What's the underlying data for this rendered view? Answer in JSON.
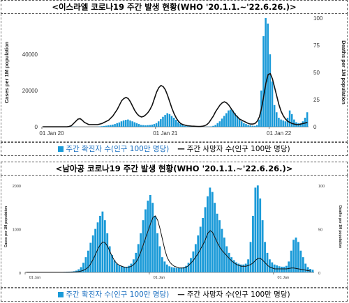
{
  "charts": [
    {
      "title": "<이스라엘 코로나19 주간 발생 현황(WHO '20.1.1.~'22.6.26.)>",
      "legend": {
        "bar_label": "주간 확진자 수(인구 100만 명당)",
        "line_label": "주간 사망자 수(인구 100만 명당)"
      }
    },
    {
      "title": "<남아공 코로나19 주간 발생 현황(WHO '20.1.1.~'22.6.26.)>",
      "legend": {
        "bar_label": "주간 확진자 수(인구 100만 명당)",
        "line_label": "주간 사망자 수(인구 100만 명당)"
      }
    }
  ],
  "colors": {
    "bar": "#1a9ad8",
    "line": "#111111"
  },
  "chart_data": [
    {
      "type": "bar",
      "title": "<이스라엘 코로나19 주간 발생 현황(WHO '20.1.1.~'22.6.26.)>",
      "xlabel": "",
      "ylabel": "Cases per 1M population",
      "y2label": "Deaths per 1M population",
      "ylim": [
        0,
        60000
      ],
      "y2lim": [
        0,
        100
      ],
      "yticks": [
        "0",
        "20000",
        "40000"
      ],
      "y2ticks": [
        "0",
        "25",
        "50",
        "75",
        "100"
      ],
      "xticks": [
        "01 Jan 20",
        "01 Jan 21",
        "01 Jan 22"
      ],
      "grid": false,
      "series": [
        {
          "name": "주간 확진자 수(인구 100만 명당)",
          "type": "bar",
          "axis": "left",
          "values": [
            0,
            0,
            0,
            0,
            0,
            0,
            0,
            0,
            0,
            0,
            0,
            0,
            20,
            60,
            80,
            60,
            40,
            20,
            10,
            5,
            5,
            5,
            5,
            10,
            20,
            60,
            150,
            300,
            450,
            600,
            800,
            1000,
            1200,
            1500,
            2000,
            2400,
            3000,
            3500,
            3800,
            4000,
            3500,
            3000,
            2500,
            2000,
            1500,
            1000,
            900,
            800,
            900,
            1000,
            1200,
            1500,
            2000,
            3000,
            4200,
            5500,
            6500,
            7500,
            7000,
            6000,
            5000,
            3800,
            2500,
            1500,
            900,
            500,
            300,
            200,
            150,
            100,
            80,
            50,
            30,
            30,
            40,
            60,
            100,
            200,
            500,
            1000,
            2000,
            3000,
            4500,
            6000,
            7500,
            9000,
            9500,
            9000,
            7500,
            6000,
            4500,
            3000,
            2000,
            1500,
            1000,
            800,
            600,
            500,
            1000,
            4000,
            20000,
            50000,
            60000,
            57000,
            40000,
            25000,
            12000,
            8000,
            5000,
            4000,
            3500,
            3000,
            5000,
            9000,
            7000,
            4000,
            2500,
            2000,
            2000,
            3000,
            5000,
            8000
          ]
        },
        {
          "name": "주간 사망자 수(인구 100만 명당)",
          "type": "line",
          "axis": "right",
          "values": [
            0,
            0,
            0,
            0,
            0,
            0,
            0,
            0,
            0,
            0,
            0,
            0,
            0.3,
            1,
            3,
            5,
            7,
            7.5,
            6,
            4,
            3,
            2,
            2,
            2,
            2,
            2,
            2.5,
            3,
            4,
            5,
            6,
            8,
            10,
            13,
            16,
            20,
            24,
            26,
            27,
            26,
            23,
            19,
            15,
            12,
            10,
            9,
            9.5,
            11,
            13,
            16,
            20,
            26,
            32,
            36,
            38,
            37,
            34,
            29,
            23,
            17,
            12,
            8,
            5,
            3,
            2,
            1.5,
            1,
            0.8,
            0.6,
            0.5,
            0.4,
            0.3,
            0.3,
            0.5,
            1,
            2,
            4,
            7,
            10,
            14,
            17,
            20,
            22,
            23,
            22,
            20,
            17,
            14,
            11,
            9,
            7,
            6,
            5,
            4,
            3,
            2.5,
            2.5,
            3,
            5,
            9,
            17,
            28,
            40,
            48,
            49,
            44,
            36,
            28,
            20,
            14,
            10,
            7,
            5,
            4,
            3,
            2.5,
            2,
            2,
            2.5,
            3,
            3.5,
            4
          ]
        }
      ]
    },
    {
      "type": "bar",
      "title": "<남아공 코로나19 주간 발생 현황(WHO '20.1.1.~'22.6.26.)>",
      "xlabel": "",
      "ylabel": "Cases per 1M population",
      "y2label": "Deaths per 1M population",
      "ylim": [
        0,
        2100
      ],
      "y2lim": [
        0,
        105
      ],
      "yticks": [
        "0",
        "1000",
        "2000"
      ],
      "y2ticks": [
        "0",
        "50",
        "100"
      ],
      "xticks": [
        "01 Jan",
        "01 Jan",
        "01 Jan"
      ],
      "grid": false,
      "series": [
        {
          "name": "주간 확진자 수(인구 100만 명당)",
          "type": "bar",
          "axis": "left",
          "values": [
            0,
            0,
            0,
            0,
            0,
            0,
            0,
            0,
            0,
            0,
            0,
            0,
            1,
            3,
            5,
            8,
            10,
            12,
            14,
            18,
            25,
            40,
            70,
            120,
            220,
            350,
            500,
            680,
            850,
            1000,
            1150,
            1300,
            1400,
            1200,
            900,
            600,
            400,
            280,
            200,
            160,
            140,
            130,
            120,
            150,
            200,
            300,
            450,
            650,
            900,
            1200,
            1450,
            1650,
            1780,
            1600,
            1300,
            900,
            600,
            350,
            250,
            180,
            140,
            120,
            110,
            100,
            100,
            110,
            120,
            150,
            220,
            330,
            480,
            650,
            850,
            1050,
            1250,
            1500,
            1750,
            1950,
            1850,
            1600,
            1350,
            1200,
            1000,
            800,
            600,
            450,
            350,
            280,
            230,
            200,
            180,
            180,
            200,
            300,
            700,
            1300,
            1950,
            2000,
            1700,
            1200,
            700,
            450,
            300,
            230,
            180,
            160,
            140,
            130,
            130,
            150,
            250,
            500,
            750,
            800,
            700,
            500,
            350,
            200,
            120,
            80,
            60
          ]
        },
        {
          "name": "주간 사망자 수(인구 100만 명당)",
          "type": "line",
          "axis": "right",
          "values": [
            0,
            0,
            0,
            0,
            0,
            0,
            0,
            0,
            0,
            0,
            0,
            0,
            0,
            0,
            0,
            0,
            0,
            0,
            0.1,
            0.2,
            0.4,
            0.6,
            1,
            1.5,
            2.5,
            4,
            6,
            10,
            15,
            21,
            27,
            32,
            35,
            34,
            30,
            24,
            18,
            13,
            10,
            8,
            7,
            6,
            6,
            6,
            7,
            9,
            12,
            17,
            24,
            32,
            40,
            48,
            56,
            63,
            65,
            60,
            50,
            38,
            26,
            17,
            12,
            9,
            7,
            6,
            5,
            5,
            5,
            6,
            8,
            11,
            14,
            18,
            22,
            27,
            32,
            38,
            45,
            48,
            46,
            40,
            34,
            29,
            25,
            22,
            19,
            16,
            13,
            11,
            9,
            8,
            7,
            7,
            7,
            8,
            9,
            11,
            14,
            16,
            16,
            14,
            11,
            8,
            6,
            5,
            4,
            4,
            4,
            4,
            4,
            4,
            4.5,
            5,
            5,
            4.5,
            4,
            3.5,
            3,
            2.5,
            2,
            1.5
          ]
        }
      ]
    }
  ]
}
